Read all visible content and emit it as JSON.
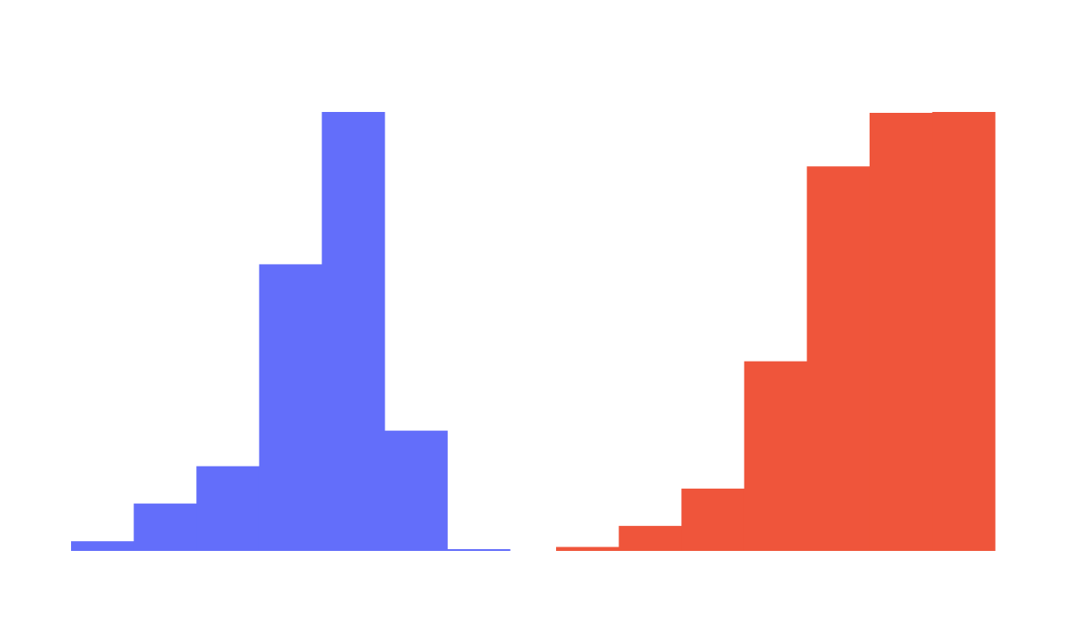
{
  "chart_data": [
    {
      "type": "bar",
      "histogram": true,
      "color": "#636EFA",
      "bins": 7,
      "values": [
        0.022,
        0.108,
        0.193,
        0.653,
        1.0,
        0.274,
        0.004
      ],
      "ylim": [
        0,
        1
      ],
      "title": "",
      "xlabel": "",
      "ylabel": "",
      "grid": false,
      "legend": "none"
    },
    {
      "type": "bar",
      "histogram": true,
      "color": "#EF553B",
      "bins": 7,
      "values": [
        0.009,
        0.057,
        0.142,
        0.432,
        0.876,
        0.998,
        1.0
      ],
      "ylim": [
        0,
        1
      ],
      "title": "",
      "xlabel": "",
      "ylabel": "",
      "grid": false,
      "legend": "none"
    }
  ]
}
